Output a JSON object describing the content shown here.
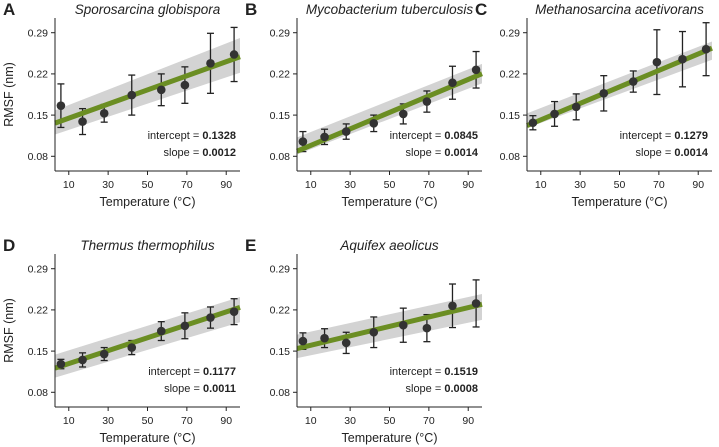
{
  "chart_data": [
    {
      "type": "scatter",
      "label": "A",
      "title": "Sporosarcina globispora",
      "xlabel": "Temperature (°C)",
      "ylabel": "RMSF (nm)",
      "x": [
        6,
        17,
        28,
        42,
        57,
        69,
        82,
        94
      ],
      "y": [
        0.166,
        0.139,
        0.153,
        0.184,
        0.193,
        0.201,
        0.238,
        0.253
      ],
      "error": [
        0.037,
        0.022,
        0.015,
        0.034,
        0.027,
        0.031,
        0.051,
        0.046
      ],
      "fit": {
        "intercept": 0.1328,
        "slope": 0.0012
      },
      "ci_band": {
        "low_left": 0.117,
        "high_left": 0.158,
        "low_right": 0.222,
        "high_right": 0.281
      },
      "stats": {
        "intercept_label": "intercept =",
        "intercept": "0.1328",
        "slope_label": "slope =",
        "slope": "0.0012"
      },
      "ylim": [
        0.055,
        0.315
      ],
      "xlim": [
        3,
        97
      ],
      "yticks": [
        0.08,
        0.15,
        0.22,
        0.29
      ],
      "xticks": [
        10,
        30,
        50,
        70,
        90
      ]
    },
    {
      "type": "scatter",
      "label": "B",
      "title": "Mycobacterium tuberculosis",
      "xlabel": "Temperature (°C)",
      "ylabel": "",
      "x": [
        6,
        17,
        28,
        42,
        57,
        69,
        82,
        94
      ],
      "y": [
        0.105,
        0.113,
        0.122,
        0.136,
        0.152,
        0.173,
        0.205,
        0.227
      ],
      "error": [
        0.017,
        0.013,
        0.013,
        0.014,
        0.017,
        0.018,
        0.028,
        0.031
      ],
      "fit": {
        "intercept": 0.0845,
        "slope": 0.0014
      },
      "ci_band": {
        "low_left": 0.083,
        "high_left": 0.112,
        "low_right": 0.204,
        "high_right": 0.237
      },
      "stats": {
        "intercept_label": "intercept =",
        "intercept": "0.0845",
        "slope_label": "slope =",
        "slope": "0.0014"
      },
      "ylim": [
        0.055,
        0.315
      ],
      "xlim": [
        3,
        97
      ],
      "yticks": [
        0.08,
        0.15,
        0.22,
        0.29
      ],
      "xticks": [
        10,
        30,
        50,
        70,
        90
      ]
    },
    {
      "type": "scatter",
      "label": "C",
      "title": "Methanosarcina acetivorans",
      "xlabel": "Temperature (°C)",
      "ylabel": "",
      "x": [
        6,
        17,
        28,
        42,
        57,
        69,
        82,
        94
      ],
      "y": [
        0.137,
        0.152,
        0.164,
        0.187,
        0.207,
        0.24,
        0.245,
        0.262
      ],
      "error": [
        0.012,
        0.021,
        0.022,
        0.03,
        0.018,
        0.055,
        0.047,
        0.045
      ],
      "fit": {
        "intercept": 0.1279,
        "slope": 0.0014
      },
      "ci_band": {
        "low_left": 0.128,
        "high_left": 0.153,
        "low_right": 0.244,
        "high_right": 0.275
      },
      "stats": {
        "intercept_label": "intercept =",
        "intercept": "0.1279",
        "slope_label": "slope =",
        "slope": "0.0014"
      },
      "ylim": [
        0.055,
        0.315
      ],
      "xlim": [
        3,
        97
      ],
      "yticks": [
        0.08,
        0.15,
        0.22,
        0.29
      ],
      "xticks": [
        10,
        30,
        50,
        70,
        90
      ]
    },
    {
      "type": "scatter",
      "label": "D",
      "title": "Thermus thermophilus",
      "xlabel": "Temperature (°C)",
      "ylabel": "RMSF (nm)",
      "x": [
        6,
        17,
        28,
        42,
        57,
        69,
        82,
        94
      ],
      "y": [
        0.128,
        0.135,
        0.145,
        0.156,
        0.184,
        0.193,
        0.207,
        0.217
      ],
      "error": [
        0.008,
        0.012,
        0.011,
        0.012,
        0.016,
        0.022,
        0.018,
        0.022
      ],
      "fit": {
        "intercept": 0.1177,
        "slope": 0.0011
      },
      "ci_band": {
        "low_left": 0.105,
        "high_left": 0.144,
        "low_right": 0.199,
        "high_right": 0.242
      },
      "stats": {
        "intercept_label": "intercept =",
        "intercept": "0.1177",
        "slope_label": "slope =",
        "slope": "0.0011"
      },
      "ylim": [
        0.055,
        0.315
      ],
      "xlim": [
        3,
        97
      ],
      "yticks": [
        0.08,
        0.15,
        0.22,
        0.29
      ],
      "xticks": [
        10,
        30,
        50,
        70,
        90
      ]
    },
    {
      "type": "scatter",
      "label": "E",
      "title": "Aquifex aeolicus",
      "xlabel": "Temperature (°C)",
      "ylabel": "",
      "x": [
        6,
        17,
        28,
        42,
        57,
        69,
        82,
        94
      ],
      "y": [
        0.167,
        0.172,
        0.164,
        0.182,
        0.194,
        0.189,
        0.227,
        0.231
      ],
      "error": [
        0.014,
        0.016,
        0.018,
        0.026,
        0.029,
        0.023,
        0.037,
        0.04
      ],
      "fit": {
        "intercept": 0.1519,
        "slope": 0.0008
      },
      "ci_band": {
        "low_left": 0.138,
        "high_left": 0.178,
        "low_right": 0.203,
        "high_right": 0.247
      },
      "stats": {
        "intercept_label": "intercept =",
        "intercept": "0.1519",
        "slope_label": "slope =",
        "slope": "0.0008"
      },
      "ylim": [
        0.055,
        0.315
      ],
      "xlim": [
        3,
        97
      ],
      "yticks": [
        0.08,
        0.15,
        0.22,
        0.29
      ],
      "xticks": [
        10,
        30,
        50,
        70,
        90
      ]
    }
  ],
  "colors": {
    "fit_line": "#6b8e23",
    "ci_band": "#d3d3d3",
    "points": "#333333",
    "error_bars": "#222222",
    "axes": "#222222"
  }
}
